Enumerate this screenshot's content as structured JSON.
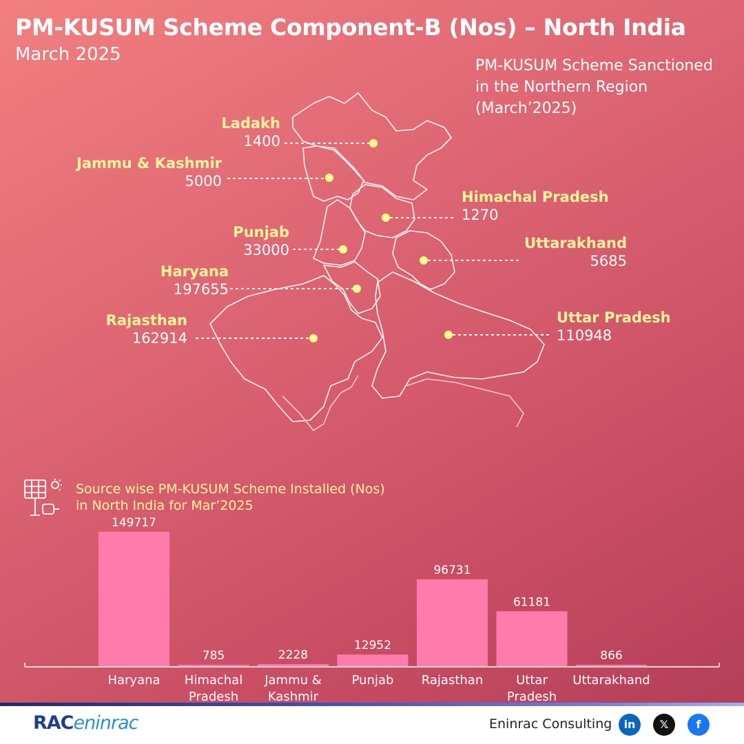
{
  "title": "PM-KUSUM Scheme Component-B (Nos) – North India",
  "subtitle": "March 2025",
  "map": {
    "caption": [
      "PM-KUSUM Scheme Sanctioned",
      "in the Northern Region",
      "(March’2025)"
    ],
    "states": [
      {
        "name": "Ladakh",
        "value": "1400"
      },
      {
        "name": "Jammu & Kashmir",
        "value": "5000"
      },
      {
        "name": "Himachal Pradesh",
        "value": "1270"
      },
      {
        "name": "Punjab",
        "value": "33000"
      },
      {
        "name": "Uttarakhand",
        "value": "5685"
      },
      {
        "name": "Haryana",
        "value": "197655"
      },
      {
        "name": "Rajasthan",
        "value": "162914"
      },
      {
        "name": "Uttar Pradesh",
        "value": "110948"
      }
    ]
  },
  "chart_data": {
    "type": "bar",
    "title": "Source wise PM-KUSUM Scheme Installed (Nos) in North India for Mar’2025",
    "title_lines": [
      "Source wise PM-KUSUM Scheme Installed (Nos)",
      "in North India for Mar’2025"
    ],
    "categories": [
      "Haryana",
      "Himachal Pradesh",
      "Jammu & Kashmir",
      "Punjab",
      "Rajasthan",
      "Uttar Pradesh",
      "Uttarakhand"
    ],
    "category_lines": [
      [
        "Haryana"
      ],
      [
        "Himachal",
        "Pradesh"
      ],
      [
        "Jammu &",
        "Kashmir"
      ],
      [
        "Punjab"
      ],
      [
        "Rajasthan"
      ],
      [
        "Uttar",
        "Pradesh"
      ],
      [
        "Uttarakhand"
      ]
    ],
    "values": [
      149717,
      785,
      2228,
      12952,
      96731,
      61181,
      866
    ],
    "ylim": [
      0,
      149717
    ],
    "bar_color": "#ff7bab",
    "grid": false
  },
  "footer": {
    "logo_rac": "RAC",
    "logo_eninrac": "eninrac",
    "company": "Eninrac Consulting",
    "social": [
      {
        "icon": "linkedin-icon",
        "glyph": "in",
        "color": "#0a66c2"
      },
      {
        "icon": "x-icon",
        "glyph": "𝕏",
        "color": "#111111"
      },
      {
        "icon": "facebook-icon",
        "glyph": "f",
        "color": "#1877f2"
      }
    ]
  },
  "colors": {
    "label_yellow": "#fff59a",
    "dot": "#ffff8a"
  }
}
